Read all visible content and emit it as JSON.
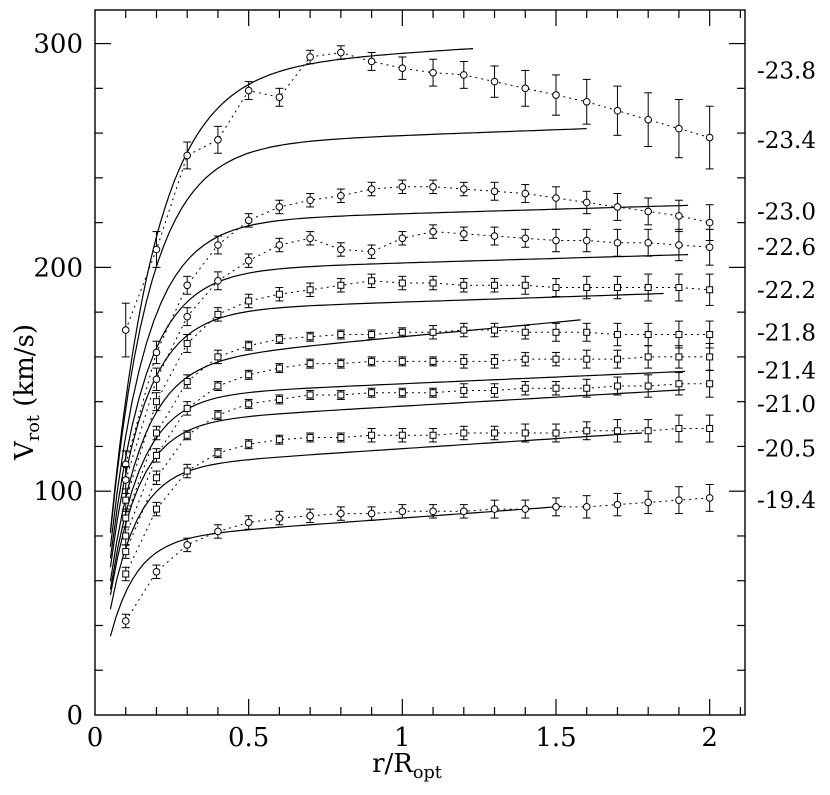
{
  "figure": {
    "background": "#ffffff",
    "ink": "#000000"
  },
  "chart_data": {
    "type": "line",
    "title": "",
    "xlabel": "r/R_opt",
    "xlabel_main": "r/R",
    "xlabel_sub": "opt",
    "ylabel": "V_rot (km/s)",
    "ylabel_main": "V",
    "ylabel_sub": "rot",
    "ylabel_units": " (km/s)",
    "xlim": [
      0,
      2.115
    ],
    "ylim": [
      0,
      315
    ],
    "grid": false,
    "legend_position": "right-margin",
    "x_ticks": {
      "major": [
        0,
        0.5,
        1,
        1.5,
        2
      ],
      "labels": [
        "0",
        "0.5",
        "1",
        "1.5",
        "2"
      ],
      "minor_step": 0.1
    },
    "y_ticks": {
      "major": [
        0,
        100,
        200,
        300
      ],
      "labels": [
        "0",
        "100",
        "200",
        "300"
      ],
      "minor_step": 20
    },
    "x": [
      0.1,
      0.2,
      0.3,
      0.4,
      0.5,
      0.6,
      0.7,
      0.8,
      0.9,
      1.0,
      1.1,
      1.2,
      1.3,
      1.4,
      1.5,
      1.6,
      1.7,
      1.8,
      1.9,
      2.0
    ],
    "series": [
      {
        "label": "-23.8",
        "label_v": 288,
        "marker": "circle",
        "v": [
          172,
          208,
          250,
          257,
          279,
          276,
          294,
          296,
          292,
          289,
          287,
          286,
          283,
          280,
          277,
          274,
          270,
          266,
          262,
          258
        ],
        "err": [
          12,
          8,
          6,
          6,
          4,
          4,
          3,
          3,
          4,
          5,
          6,
          6,
          7,
          8,
          9,
          10,
          11,
          12,
          13,
          14
        ],
        "model": {
          "vflat": 288,
          "slope": 8,
          "rs": 0.15,
          "xmin": 0.05,
          "xmax": 1.23
        }
      },
      {
        "label": "-23.4",
        "label_v": 257,
        "marker": "circle",
        "v": null,
        "err": null,
        "model": {
          "vflat": 254,
          "slope": 5,
          "rs": 0.13,
          "xmin": 0.05,
          "xmax": 1.6
        }
      },
      {
        "label": "-23.0",
        "label_v": 225,
        "marker": "circle",
        "v": [
          112,
          162,
          192,
          210,
          221,
          227,
          230,
          232,
          235,
          236,
          236,
          235,
          234,
          233,
          231,
          229,
          227,
          225,
          223,
          220
        ],
        "err": [
          6,
          5,
          4,
          4,
          3,
          3,
          3,
          3,
          3,
          3,
          3,
          3,
          4,
          4,
          5,
          5,
          6,
          6,
          7,
          8
        ],
        "model": {
          "vflat": 220,
          "slope": 4,
          "rs": 0.12,
          "xmin": 0.05,
          "xmax": 1.93
        }
      },
      {
        "label": "-22.6",
        "label_v": 209,
        "marker": "circle",
        "v": [
          105,
          150,
          178,
          194,
          203,
          210,
          213,
          208,
          207,
          213,
          216,
          215,
          214,
          213,
          212,
          212,
          211,
          211,
          210,
          209
        ],
        "err": [
          6,
          5,
          4,
          4,
          3,
          3,
          3,
          3,
          3,
          3,
          3,
          3,
          4,
          4,
          5,
          5,
          6,
          6,
          7,
          8
        ],
        "model": {
          "vflat": 198,
          "slope": 4,
          "rs": 0.115,
          "xmin": 0.05,
          "xmax": 1.93
        }
      },
      {
        "label": "-22.2",
        "label_v": 190,
        "marker": "square",
        "v": [
          96,
          140,
          166,
          179,
          185,
          188,
          190,
          192,
          194,
          193,
          193,
          192,
          192,
          192,
          191,
          191,
          191,
          191,
          191,
          190
        ],
        "err": [
          5,
          4,
          4,
          3,
          3,
          3,
          3,
          3,
          3,
          3,
          3,
          3,
          3,
          4,
          4,
          5,
          5,
          6,
          6,
          7
        ],
        "model": {
          "vflat": 180,
          "slope": 4.5,
          "rs": 0.11,
          "xmin": 0.05,
          "xmax": 1.85
        }
      },
      {
        "label": "-21.8",
        "label_v": 171,
        "marker": "square",
        "v": [
          88,
          126,
          149,
          160,
          165,
          168,
          169,
          170,
          170,
          171,
          171,
          172,
          172,
          171,
          171,
          171,
          170,
          170,
          170,
          170
        ],
        "err": [
          4,
          3,
          3,
          3,
          2,
          2,
          2,
          2,
          2,
          2,
          3,
          3,
          3,
          3,
          4,
          4,
          5,
          5,
          6,
          6
        ],
        "model": {
          "vflat": 156,
          "slope": 13,
          "rs": 0.105,
          "xmin": 0.05,
          "xmax": 1.58
        }
      },
      {
        "label": "-21.4",
        "label_v": 154,
        "marker": "square",
        "v": [
          80,
          116,
          137,
          147,
          152,
          155,
          157,
          157,
          158,
          158,
          158,
          158,
          158,
          159,
          159,
          159,
          159,
          160,
          160,
          160
        ],
        "err": [
          4,
          3,
          3,
          2,
          2,
          2,
          2,
          2,
          2,
          2,
          2,
          3,
          3,
          3,
          3,
          4,
          4,
          5,
          5,
          6
        ],
        "model": {
          "vflat": 142,
          "slope": 6,
          "rs": 0.1,
          "xmin": 0.05,
          "xmax": 1.92
        }
      },
      {
        "label": "-21.0",
        "label_v": 139,
        "marker": "square",
        "v": [
          73,
          106,
          125,
          134,
          139,
          141,
          143,
          143,
          144,
          144,
          144,
          145,
          145,
          146,
          146,
          146,
          147,
          147,
          148,
          148
        ],
        "err": [
          3,
          3,
          2,
          2,
          2,
          2,
          2,
          2,
          2,
          2,
          2,
          3,
          3,
          3,
          3,
          4,
          4,
          5,
          5,
          6
        ],
        "model": {
          "vflat": 130,
          "slope": 8,
          "rs": 0.095,
          "xmin": 0.05,
          "xmax": 1.92
        }
      },
      {
        "label": "-20.5",
        "label_v": 119,
        "marker": "square",
        "v": [
          63,
          92,
          109,
          117,
          121,
          123,
          124,
          124,
          125,
          125,
          125,
          126,
          126,
          126,
          126,
          127,
          127,
          127,
          128,
          128
        ],
        "err": [
          3,
          3,
          3,
          2,
          2,
          2,
          2,
          2,
          3,
          3,
          3,
          3,
          3,
          4,
          4,
          4,
          5,
          5,
          6,
          6
        ],
        "model": {
          "vflat": 110,
          "slope": 9,
          "rs": 0.09,
          "xmin": 0.05,
          "xmax": 1.78
        }
      },
      {
        "label": "-19.4",
        "label_v": 96,
        "marker": "circle",
        "v": [
          42,
          64,
          76,
          82,
          86,
          88,
          89,
          90,
          90,
          91,
          91,
          91,
          92,
          92,
          93,
          93,
          94,
          95,
          96,
          97
        ],
        "err": [
          3,
          3,
          3,
          3,
          3,
          3,
          3,
          3,
          3,
          3,
          3,
          3,
          4,
          4,
          4,
          5,
          5,
          5,
          6,
          6
        ],
        "model": {
          "vflat": 78,
          "slope": 10,
          "rs": 0.085,
          "xmin": 0.05,
          "xmax": 1.52
        }
      }
    ]
  }
}
